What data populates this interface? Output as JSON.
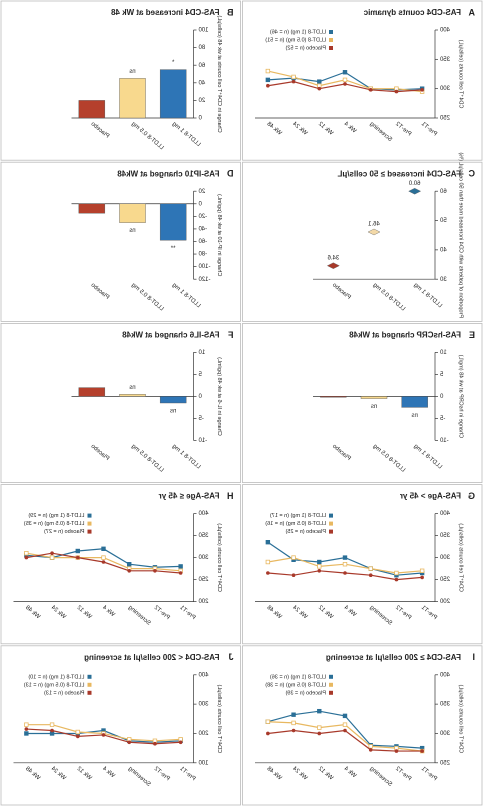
{
  "chart_data": [
    {
      "panel": "A",
      "type": "line",
      "title": "FAS-CD4 counts dynamic",
      "ylabel": "CD4⁺T cell counts (cells/μL)",
      "categories": [
        "Pre-T1",
        "Pre-T2",
        "Screening",
        "Wk 4",
        "Wk 12",
        "Wk 24",
        "Wk 48"
      ],
      "ylim": [
        250,
        400
      ],
      "yticks": [
        250,
        300,
        350,
        400
      ],
      "series": [
        {
          "name": "LLDT-8 (1 mg) (n = 46)",
          "color": "#2a6f97",
          "values": [
            300,
            298,
            300,
            328,
            312,
            318,
            315
          ]
        },
        {
          "name": "LLDT-8 (0.5 mg) (n = 51)",
          "color": "#e8b860",
          "values": [
            295,
            300,
            300,
            315,
            305,
            320,
            330
          ]
        },
        {
          "name": "Placebo (n = 52)",
          "color": "#a8392a",
          "values": [
            298,
            295,
            298,
            308,
            300,
            312,
            305
          ]
        }
      ]
    },
    {
      "panel": "B",
      "type": "bar",
      "title": "FAS-CD4 increased at Wk 48",
      "ylabel": "Change in CD4⁺T cell counts at wk 48 (cells/μL)",
      "categories": [
        "LLDT-8 1 mg",
        "LLDT-8 0.5 mg",
        "Placebo"
      ],
      "colors": [
        "#2e75b6",
        "#f8d98e",
        "#b5402c"
      ],
      "values": [
        55,
        45,
        20
      ],
      "annotations": [
        "*",
        "ns",
        null
      ],
      "ylim": [
        0,
        100
      ],
      "yticks": [
        0,
        20,
        40,
        60,
        80,
        100
      ]
    },
    {
      "panel": "C",
      "type": "dot",
      "title": "FAS-CD4 increased ≥ 50 cells/μL",
      "ylabel": "Proportion of patients with CD4 increased more than 50 cells/μL (%)",
      "categories": [
        "LLDT-8 1 mg",
        "LLDT-8 0.5 mg",
        "Placebo"
      ],
      "colors": [
        "#2a6f97",
        "#f3d9a8",
        "#a8392a"
      ],
      "values": [
        60,
        46.1,
        34.6
      ],
      "value_labels": [
        "60.0",
        "46.1",
        "34.6"
      ],
      "ylim": [
        30,
        60
      ],
      "yticks": [
        30,
        40,
        50,
        60
      ]
    },
    {
      "panel": "D",
      "type": "bar",
      "title": "FAS-IP10 changed at Wk48",
      "ylabel": "Change in IP-10 at wk 48 (pg/mL)",
      "categories": [
        "LLDT-8 1 mg",
        "LLDT-8 0.5 mg",
        "Placebo"
      ],
      "colors": [
        "#2e75b6",
        "#f8d98e",
        "#b5402c"
      ],
      "values": [
        -58,
        -30,
        -15
      ],
      "annotations": [
        "**",
        "ns",
        null
      ],
      "ylim": [
        -120,
        20
      ],
      "yticks": [
        -120,
        -100,
        -80,
        -60,
        -40,
        -20,
        0,
        20
      ]
    },
    {
      "panel": "E",
      "type": "bar",
      "title": "FAS-hsCRP changed at Wk48",
      "ylabel": "Change in hsCRP at wk 48 (mg/L)",
      "categories": [
        "LLDT-8 1 mg",
        "LLDT-8 0.5 mg",
        "Placebo"
      ],
      "colors": [
        "#2e75b6",
        "#f8d98e",
        "#b5402c"
      ],
      "values": [
        -2.5,
        -0.5,
        -0.2
      ],
      "annotations": [
        "ns",
        "ns",
        null
      ],
      "ylim": [
        -10,
        10
      ],
      "yticks": [
        -10,
        -5,
        0,
        5,
        10
      ]
    },
    {
      "panel": "F",
      "type": "bar",
      "title": "FAS-IL6 changed at Wk48",
      "ylabel": "Change in IL-6 at wk 48 (pg/mL)",
      "categories": [
        "LLDT-8 1 mg",
        "LLDT-8 0.5 mg",
        "Placebo"
      ],
      "colors": [
        "#2e75b6",
        "#f8d98e",
        "#b5402c"
      ],
      "values": [
        -1.5,
        0.5,
        2
      ],
      "annotations": [
        "ns",
        "ns",
        null
      ],
      "ylim": [
        -10,
        10
      ],
      "yticks": [
        -10,
        -5,
        0,
        5,
        10
      ]
    },
    {
      "panel": "G",
      "type": "line",
      "title": "FAS-Age > 45 yr",
      "ylabel": "CD4⁺T cell counts (cells/μL)",
      "categories": [
        "Pre-T1",
        "Pre-T2",
        "Screening",
        "Wk 4",
        "Wk 12",
        "Wk 24",
        "Wk 48"
      ],
      "ylim": [
        200,
        400
      ],
      "yticks": [
        200,
        250,
        300,
        350,
        400
      ],
      "series": [
        {
          "name": "LLDT-8 (1 mg) (n = 17)",
          "color": "#2a6f97",
          "values": [
            265,
            260,
            275,
            300,
            290,
            295,
            335
          ]
        },
        {
          "name": "LLDT-8 (0.5 mg) (n = 16)",
          "color": "#e8b860",
          "values": [
            270,
            265,
            275,
            285,
            280,
            300,
            290
          ]
        },
        {
          "name": "Placebo (n = 25)",
          "color": "#a8392a",
          "values": [
            255,
            250,
            260,
            265,
            270,
            260,
            265
          ]
        }
      ]
    },
    {
      "panel": "H",
      "type": "line",
      "title": "FAS-Age ≤ 45 yr",
      "ylabel": "CD4⁺T cell counts (cells/μL)",
      "categories": [
        "Pre-T1",
        "Pre-T2",
        "Screening",
        "Wk 4",
        "Wk 12",
        "Wk 24",
        "Wk 48"
      ],
      "ylim": [
        200,
        400
      ],
      "yticks": [
        200,
        250,
        300,
        350,
        400
      ],
      "series": [
        {
          "name": "LLDT-8 (1 mg) (n = 29)",
          "color": "#2a6f97",
          "values": [
            280,
            278,
            285,
            320,
            315,
            300,
            305
          ]
        },
        {
          "name": "LLDT-8 (0.5 mg) (n = 35)",
          "color": "#e8b860",
          "values": [
            270,
            275,
            275,
            300,
            300,
            300,
            310
          ]
        },
        {
          "name": "Placebo (n = 27)",
          "color": "#a8392a",
          "values": [
            265,
            270,
            270,
            290,
            300,
            310,
            300
          ]
        }
      ]
    },
    {
      "panel": "I",
      "type": "line",
      "title": "FAS-CD4 ≥ 200 cells/μl at screening",
      "ylabel": "CD4⁺T cell counts (cells/μL)",
      "categories": [
        "Pre-T1",
        "Pre-T2",
        "Screening",
        "Wk 4",
        "Wk 12",
        "Wk 24",
        "Wk 48"
      ],
      "ylim": [
        250,
        400
      ],
      "yticks": [
        250,
        300,
        350,
        400
      ],
      "series": [
        {
          "name": "LLDT-8 (1 mg) (n = 36)",
          "color": "#2a6f97",
          "values": [
            275,
            278,
            280,
            330,
            338,
            332,
            320
          ]
        },
        {
          "name": "LLDT-8 (0.5 mg) (n = 38)",
          "color": "#e8b860",
          "values": [
            270,
            275,
            278,
            315,
            310,
            318,
            320
          ]
        },
        {
          "name": "Placebo (n = 39)",
          "color": "#a8392a",
          "values": [
            270,
            270,
            272,
            305,
            300,
            305,
            300
          ]
        }
      ]
    },
    {
      "panel": "J",
      "type": "line",
      "title": "FAS-CD4 < 200 cells/μl at screening",
      "ylabel": "CD4⁺T cell counts (cells/μL)",
      "categories": [
        "Pre-T1",
        "Pre-T2",
        "Screening",
        "Wk 4",
        "Wk 12",
        "Wk 24",
        "Wk 48"
      ],
      "ylim": [
        100,
        400
      ],
      "yticks": [
        100,
        200,
        300,
        400
      ],
      "series": [
        {
          "name": "LLDT-8 (1 mg) (n = 10)",
          "color": "#2a6f97",
          "values": [
            175,
            170,
            175,
            210,
            200,
            200,
            200
          ]
        },
        {
          "name": "LLDT-8 (0.5 mg) (n = 13)",
          "color": "#e8b860",
          "values": [
            180,
            175,
            180,
            200,
            205,
            230,
            230
          ]
        },
        {
          "name": "Placebo (n = 13)",
          "color": "#a8392a",
          "values": [
            170,
            165,
            170,
            195,
            190,
            210,
            215
          ]
        }
      ]
    }
  ]
}
